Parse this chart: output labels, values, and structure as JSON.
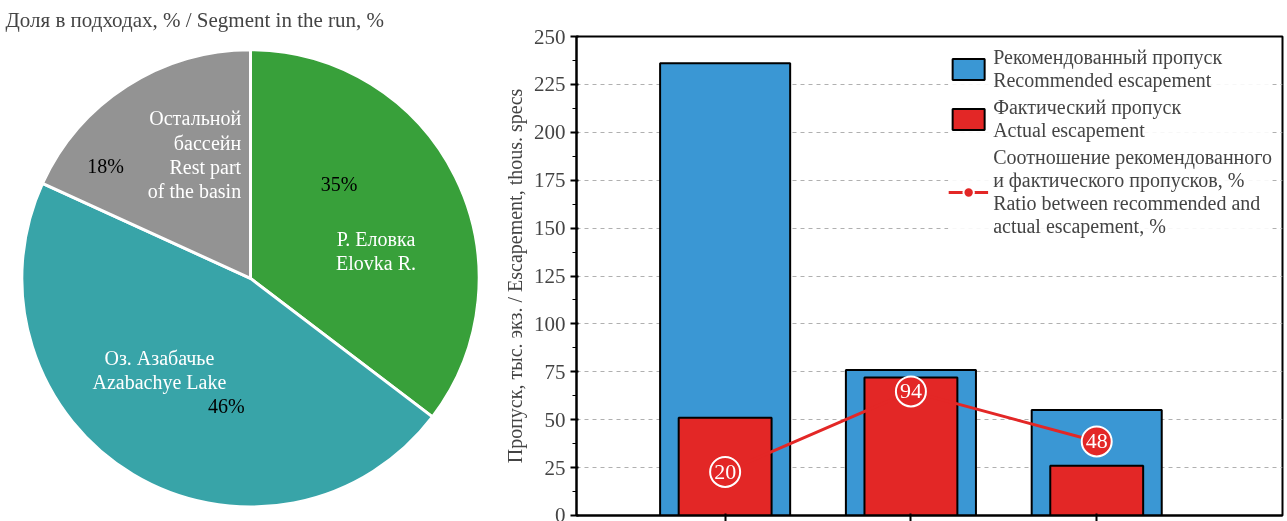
{
  "chart_data": [
    {
      "type": "pie",
      "title": "Доля в подходах, % / Segment in the run, %",
      "categories": [
        "Р. Еловка\nElovka R.",
        "Оз. Азабачье\nAzabachye Lake",
        "Остальной\nбассейн\nRest part\nof the basin"
      ],
      "values": [
        35,
        46,
        18
      ],
      "colors": [
        "#38a03a",
        "#38a4a8",
        "#939393"
      ],
      "value_labels": [
        "35%",
        "46%",
        "18%"
      ]
    },
    {
      "type": "bar",
      "ylabel": "Пропуск, тыс. экз. / Escapement, thous. specs",
      "categories": [
        null,
        null,
        null
      ],
      "ylim": [
        0,
        250
      ],
      "yticks": [
        0,
        25,
        50,
        75,
        100,
        125,
        150,
        175,
        200,
        225,
        250
      ],
      "grid": "y",
      "legend": "top right",
      "series": [
        {
          "name": "Рекомендованный пропуск\nRecommended escapement",
          "color": "#3a97d4",
          "values": [
            236,
            76,
            55
          ]
        },
        {
          "name": "Фактический пропуск\nActual escapement",
          "color": "#e32726",
          "values": [
            51,
            72,
            26
          ]
        },
        {
          "name": "Соотношение рекомендованного\nи фактического пропусков, %\nRatio between recommended and\nactual escapement, %",
          "type": "line",
          "axis": "y2",
          "color": "#e32726",
          "marker": "circle",
          "values": [
            20,
            94,
            48
          ],
          "value_labels": [
            "20",
            "94",
            "48"
          ]
        }
      ],
      "y2lim": [
        -20,
        420
      ]
    }
  ]
}
